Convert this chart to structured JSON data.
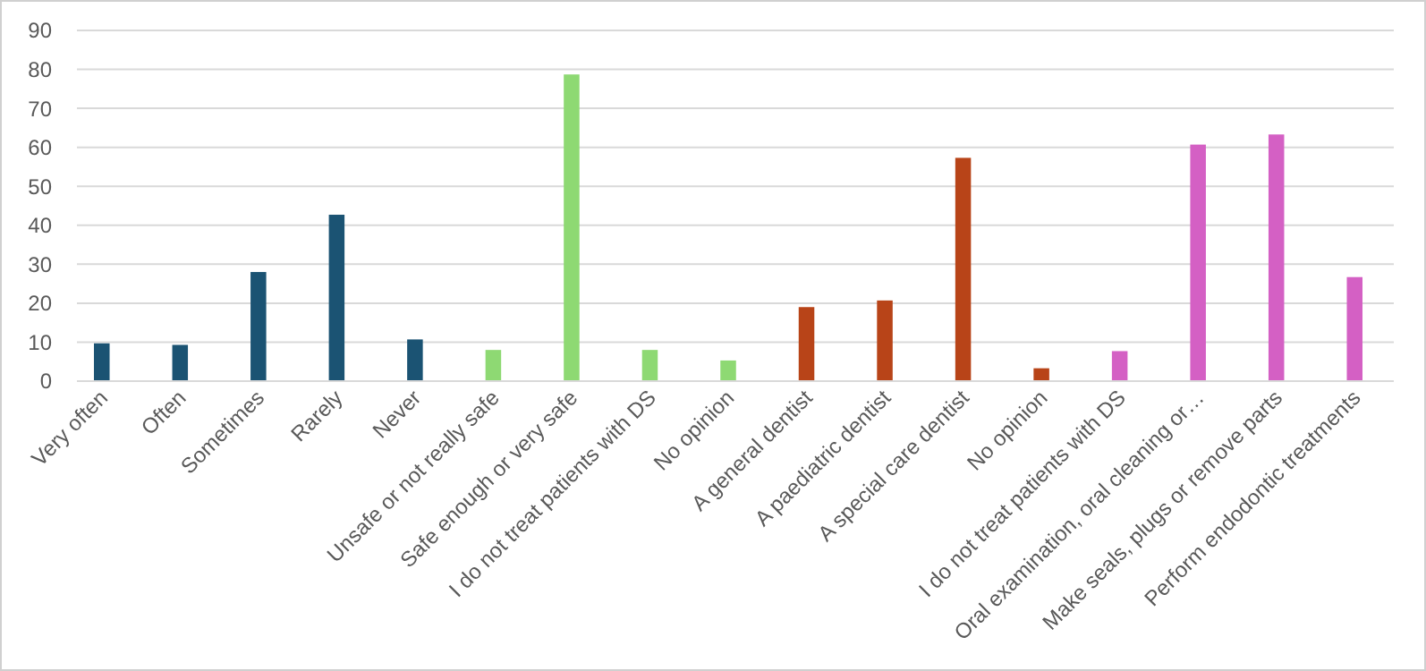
{
  "chart_data": {
    "type": "bar",
    "categories": [
      "Very often",
      "Often",
      "Sometimes",
      "Rarely",
      "Never",
      "Unsafe or not really safe",
      "Safe enough or very safe",
      "I do not treat patients with DS",
      "No opinion",
      "A general dentist",
      "A paediatric dentist",
      "A special care dentist",
      "No opinion",
      "I do not treat patients with DS",
      "Oral examination, oral cleaning or…",
      "Make seals, plugs or remove parts",
      "Perform endodontic treatments"
    ],
    "values": [
      9.7,
      9.3,
      28,
      42.7,
      10.7,
      8,
      78.7,
      8,
      5.3,
      19,
      20.7,
      57.3,
      3.3,
      7.7,
      60.7,
      63.3,
      26.7
    ],
    "colors": [
      "#1b5373",
      "#1b5373",
      "#1b5373",
      "#1b5373",
      "#1b5373",
      "#8ed973",
      "#8ed973",
      "#8ed973",
      "#8ed973",
      "#b84418",
      "#b84418",
      "#b84418",
      "#b84418",
      "#d460c4",
      "#d460c4",
      "#d460c4",
      "#d460c4"
    ],
    "ylim": [
      0,
      90
    ],
    "yticks": [
      0,
      10,
      20,
      30,
      40,
      50,
      60,
      70,
      80,
      90
    ],
    "grid": "y"
  }
}
